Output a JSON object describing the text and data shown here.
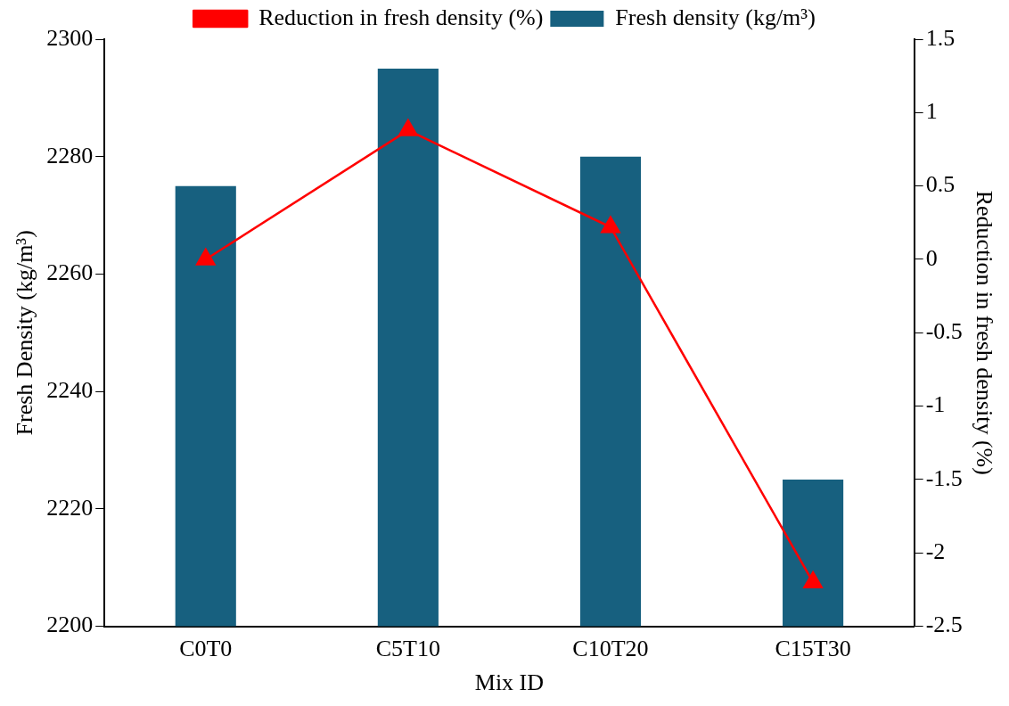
{
  "chart_data": {
    "type": "bar",
    "xlabel": "Mix ID",
    "ylabel": "Fresh Density (kg/m³)",
    "y2label": "Reduction in fresh density (%)",
    "categories": [
      "C0T0",
      "C5T10",
      "C10T20",
      "C15T30"
    ],
    "series": [
      {
        "name": "Fresh density (kg/m³)",
        "color": "#17607f",
        "values": [
          2275,
          2295,
          2280,
          2225
        ]
      },
      {
        "name": "Reduction in fresh density (%)",
        "type": "line",
        "axis": "y2",
        "color": "#ff0000",
        "marker": "triangle",
        "values": [
          0,
          0.88,
          0.22,
          -2.2
        ]
      }
    ],
    "ylim": [
      2200,
      2300
    ],
    "yticks": [
      2200,
      2220,
      2240,
      2260,
      2280,
      2300
    ],
    "y2lim": [
      -2.5,
      1.5
    ],
    "y2ticks": [
      -2.5,
      -2,
      -1.5,
      -1,
      -0.5,
      0,
      0.5,
      1,
      1.5
    ],
    "grid": false,
    "legend": "top"
  }
}
